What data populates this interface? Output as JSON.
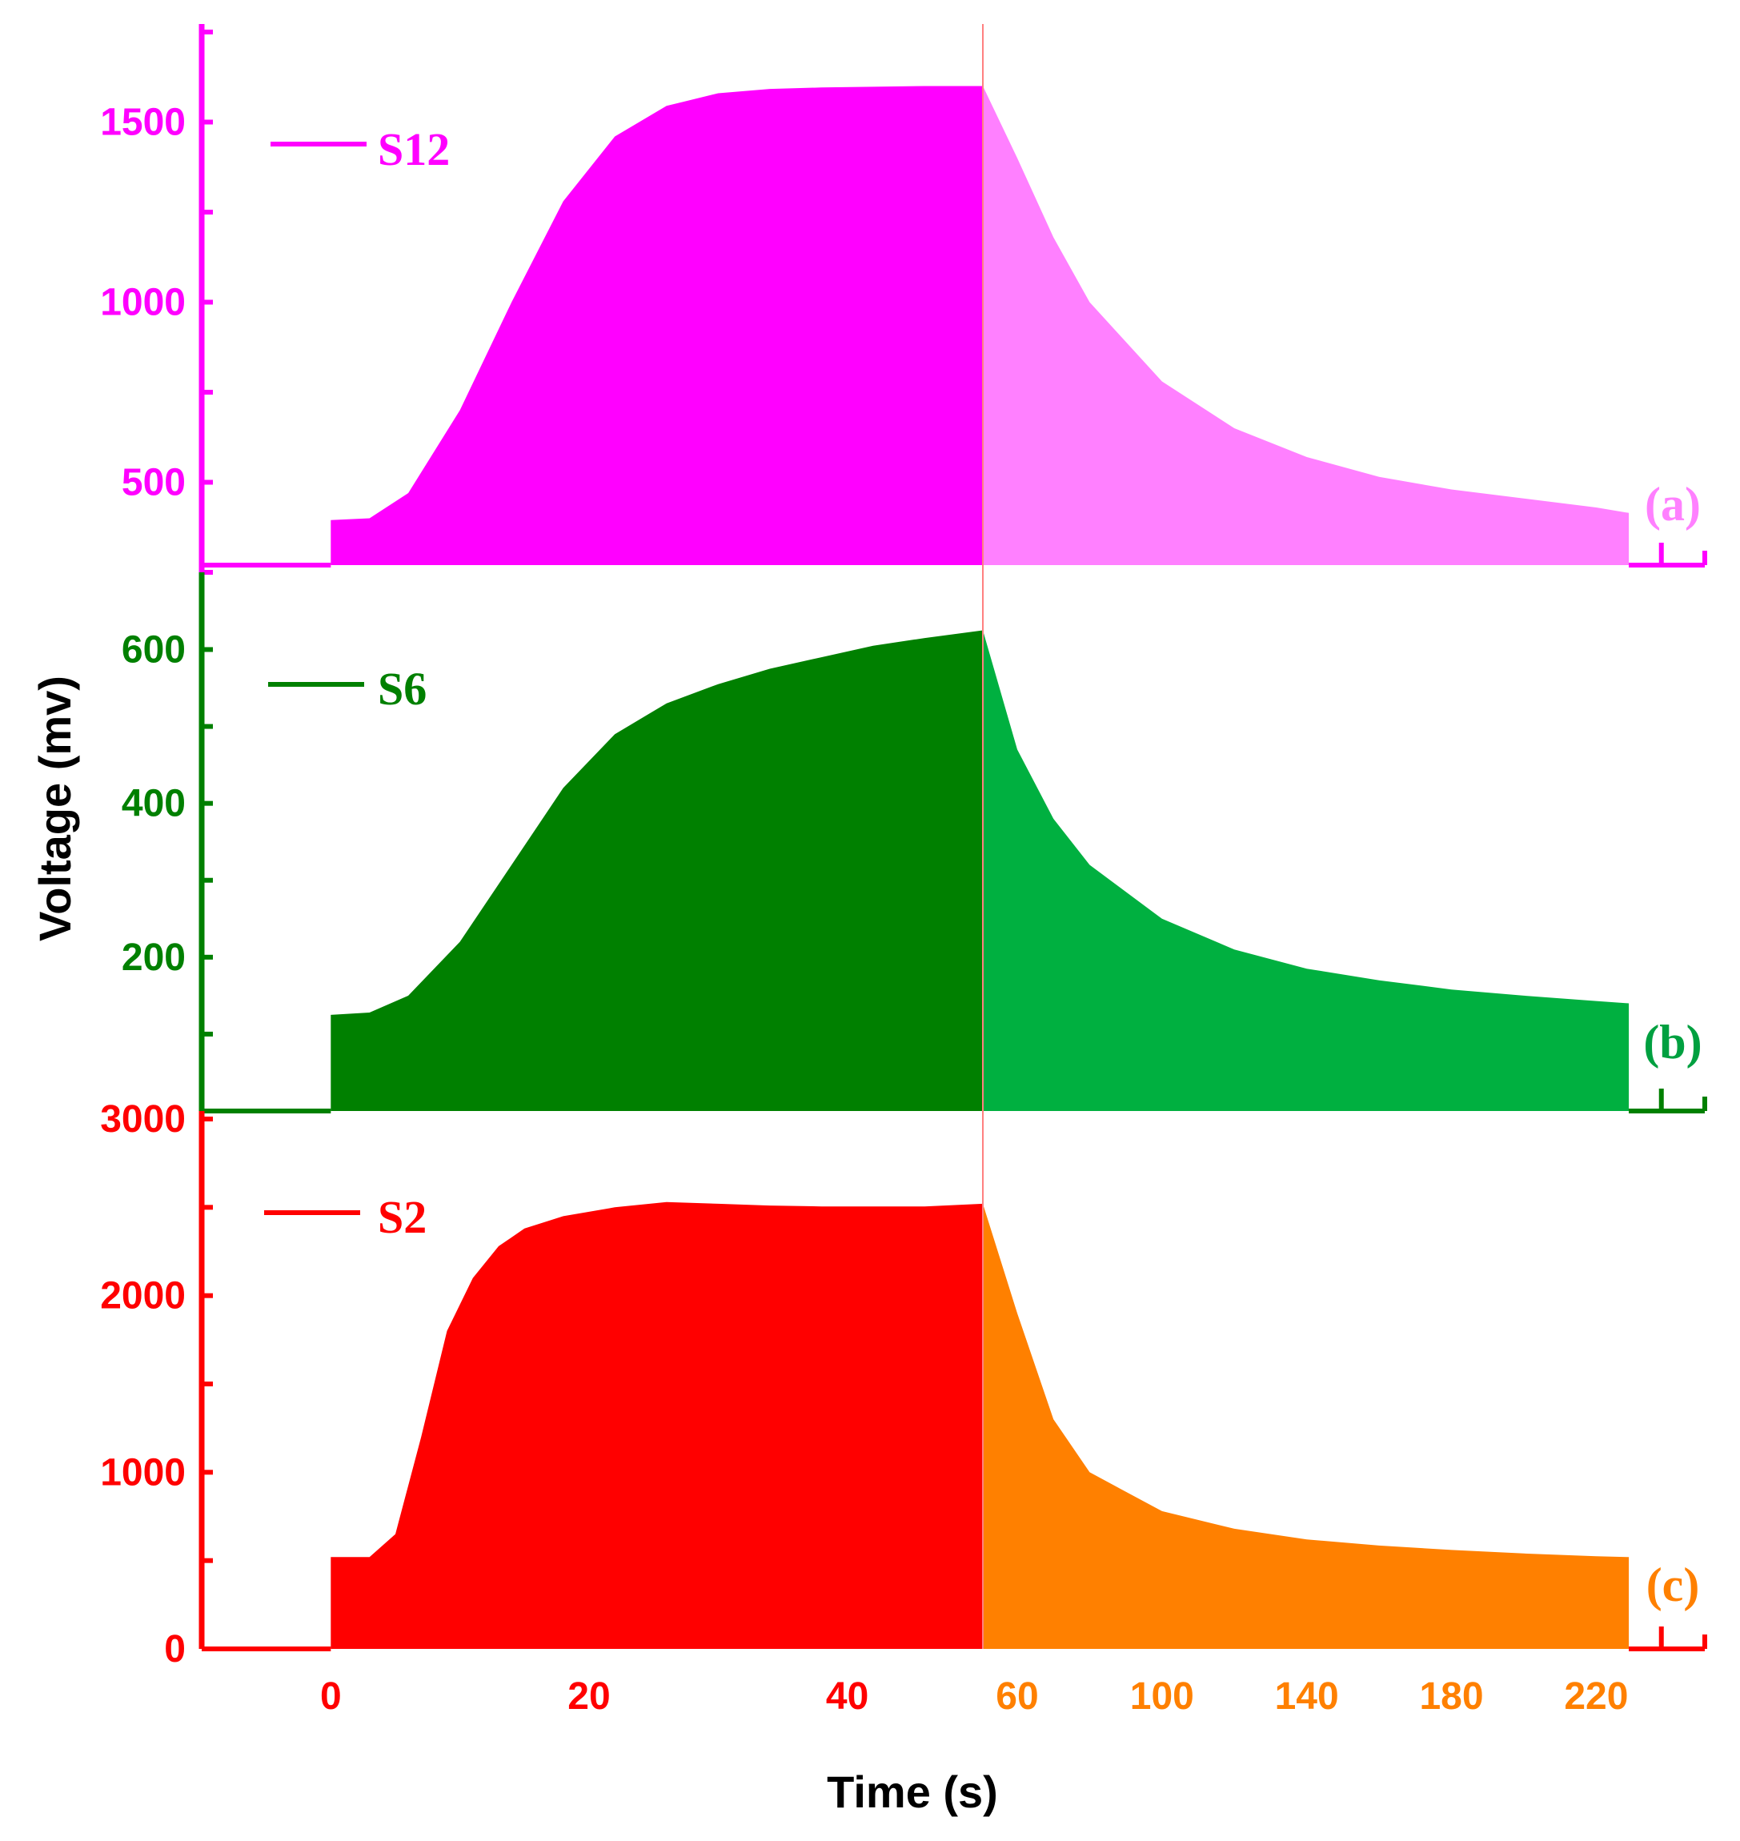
{
  "chart_data": {
    "type": "area",
    "xlabel": "Time (s)",
    "ylabel": "Voltage (mv)",
    "x_axis": {
      "segment1": {
        "range": [
          -10,
          50.5
        ],
        "ticks": [
          0,
          20,
          40
        ],
        "color": "#ff0000"
      },
      "segment2": {
        "range": [
          50.5,
          250
        ],
        "ticks": [
          60,
          100,
          140,
          180,
          220
        ],
        "color": "#ff8000"
      }
    },
    "panels": [
      {
        "panel_label": "(a)",
        "series_name": "S12",
        "line_color": "#ff00ff",
        "fill_rise_color": "#ff00ff",
        "fill_decay_color": "#ff80ff",
        "label_color": "#ff80ff",
        "tick_color": "#ff00ff",
        "ylim": [
          250,
          1750
        ],
        "yticks": [
          500,
          1000,
          1500
        ],
        "baseline": 270,
        "x": [
          -10,
          0,
          0,
          3,
          6,
          10,
          14,
          18,
          22,
          26,
          30,
          34,
          38,
          42,
          46,
          50.5,
          60,
          70,
          80,
          100,
          120,
          140,
          160,
          180,
          200,
          220,
          229,
          229,
          245
        ],
        "y": [
          270,
          270,
          395,
          400,
          470,
          700,
          1000,
          1280,
          1460,
          1545,
          1580,
          1592,
          1596,
          1598,
          1600,
          1600,
          1400,
          1180,
          1000,
          780,
          650,
          570,
          515,
          480,
          455,
          430,
          415,
          270,
          270
        ]
      },
      {
        "panel_label": "(b)",
        "series_name": "S6",
        "line_color": "#008000",
        "fill_rise_color": "#008000",
        "fill_decay_color": "#00b040",
        "label_color": "#00a040",
        "tick_color": "#008000",
        "ylim": [
          0,
          690
        ],
        "yticks": [
          200,
          400,
          600
        ],
        "baseline": 0,
        "x": [
          -10,
          0,
          0,
          3,
          6,
          10,
          14,
          18,
          22,
          26,
          30,
          34,
          38,
          42,
          46,
          50.5,
          60,
          70,
          80,
          100,
          120,
          140,
          160,
          180,
          200,
          220,
          229,
          229,
          245
        ],
        "y": [
          0,
          0,
          125,
          128,
          150,
          220,
          320,
          420,
          490,
          530,
          555,
          575,
          590,
          605,
          615,
          625,
          470,
          380,
          320,
          250,
          210,
          185,
          170,
          158,
          150,
          143,
          140,
          0,
          0
        ]
      },
      {
        "panel_label": "(c)",
        "series_name": "S2",
        "line_color": "#ff0000",
        "fill_rise_color": "#ff0000",
        "fill_decay_color": "#ff8000",
        "label_color": "#ff8000",
        "tick_color": "#ff0000",
        "ylim": [
          0,
          3000
        ],
        "yticks": [
          0,
          1000,
          2000,
          3000
        ],
        "baseline": 0,
        "x": [
          -10,
          0,
          0,
          3,
          5,
          7,
          9,
          11,
          13,
          15,
          18,
          22,
          26,
          30,
          34,
          38,
          42,
          46,
          50.5,
          60,
          70,
          80,
          100,
          120,
          140,
          160,
          180,
          200,
          220,
          229,
          229,
          245
        ],
        "y": [
          0,
          0,
          520,
          520,
          650,
          1200,
          1800,
          2100,
          2280,
          2380,
          2450,
          2500,
          2530,
          2520,
          2510,
          2505,
          2505,
          2505,
          2520,
          1900,
          1300,
          1000,
          780,
          680,
          620,
          585,
          560,
          540,
          525,
          520,
          0,
          0
        ]
      }
    ]
  }
}
